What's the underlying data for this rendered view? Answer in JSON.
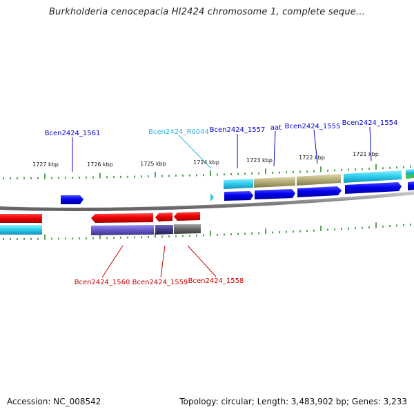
{
  "title": "Burkholderia cenocepacia HI2424 chromosome 1, complete seque...",
  "footer": {
    "accession": "Accession: NC_008542",
    "summary": "Topology: circular; Length: 3,483,902 bp; Genes: 3,233"
  },
  "colors": {
    "backbone": "#8c8c8c",
    "tick": "#2f8a2f",
    "cds_forward": "#0000ee",
    "cds_reverse": "#ee0000",
    "rna": "#29c5ee",
    "label_forward": "#0000cc",
    "label_reverse": "#cc0000",
    "label_rna": "#33b5e0",
    "cog_olive": "#b8b07a",
    "cog_cyan": "#2fd0ee",
    "cog_purple": "#6a5acd",
    "cog_navy": "#443c8a",
    "cog_gray": "#6b6b6b",
    "cog_green": "#3cbf5c"
  },
  "ruler_labels": [
    "1727 kbp",
    "1726 kbp",
    "1725 kbp",
    "1724 kbp",
    "1723 kbp",
    "1722 kbp",
    "1721 kbp"
  ],
  "gene_labels": {
    "forward": [
      "Bcen2424_1561",
      "Bcen2424_1557",
      "aat",
      "Bcen2424_1555",
      "Bcen2424_1554"
    ],
    "rna": [
      "Bcen2424_R0044"
    ],
    "reverse": [
      "Bcen2424_1560",
      "Bcen2424_1559",
      "Bcen2424_1558"
    ]
  },
  "icons": [
    "forward-cds-arrow-icon",
    "reverse-cds-arrow-icon",
    "rna-arrow-icon"
  ]
}
